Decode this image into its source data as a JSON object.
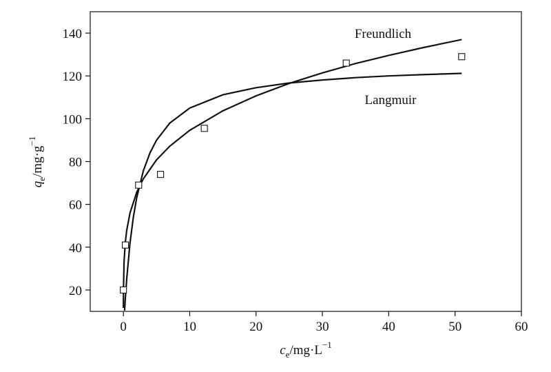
{
  "chart_data": {
    "type": "scatter",
    "xlabel": {
      "var": "c",
      "sub": "e",
      "unit": "/mg·L",
      "sup": "−1"
    },
    "ylabel": {
      "var": "q",
      "sub": "e",
      "unit": "/mg·g",
      "sup": "−1"
    },
    "xlim": [
      -5,
      60
    ],
    "xticks": [
      0,
      10,
      20,
      30,
      40,
      50,
      60
    ],
    "ylim": [
      10,
      150
    ],
    "yticks": [
      20,
      40,
      60,
      80,
      100,
      120,
      140
    ],
    "color": "#111111",
    "series": [
      {
        "type": "scatter",
        "x": [
          0,
          0.3,
          2.3,
          5.6,
          12.2,
          33.6,
          51
        ],
        "values": [
          20,
          41,
          69,
          74,
          95.5,
          126,
          129
        ]
      },
      {
        "type": "line",
        "name": "Freundlich",
        "x": [
          0.001,
          0.01,
          0.1,
          0.3,
          0.5,
          1,
          2,
          3,
          5,
          7,
          10,
          15,
          20,
          25,
          30,
          35,
          40,
          45,
          51
        ],
        "values": [
          11.6,
          19.6,
          33.2,
          42.6,
          47.8,
          56,
          65.6,
          71.9,
          80.8,
          87.2,
          94.6,
          103.7,
          110.7,
          116.5,
          121.4,
          125.8,
          129.6,
          133.1,
          137
        ]
      },
      {
        "type": "line",
        "name": "Langmuir",
        "x": [
          0.18,
          0.3,
          0.5,
          1,
          1.5,
          2,
          3,
          4,
          5,
          7,
          10,
          15,
          20,
          25,
          30,
          35,
          40,
          45,
          51
        ],
        "values": [
          10.4,
          16.4,
          25.2,
          42,
          54,
          63,
          75.6,
          84,
          90,
          98,
          105,
          111.2,
          114.5,
          116.7,
          118.1,
          119.2,
          120,
          120.6,
          121.2
        ]
      }
    ]
  }
}
